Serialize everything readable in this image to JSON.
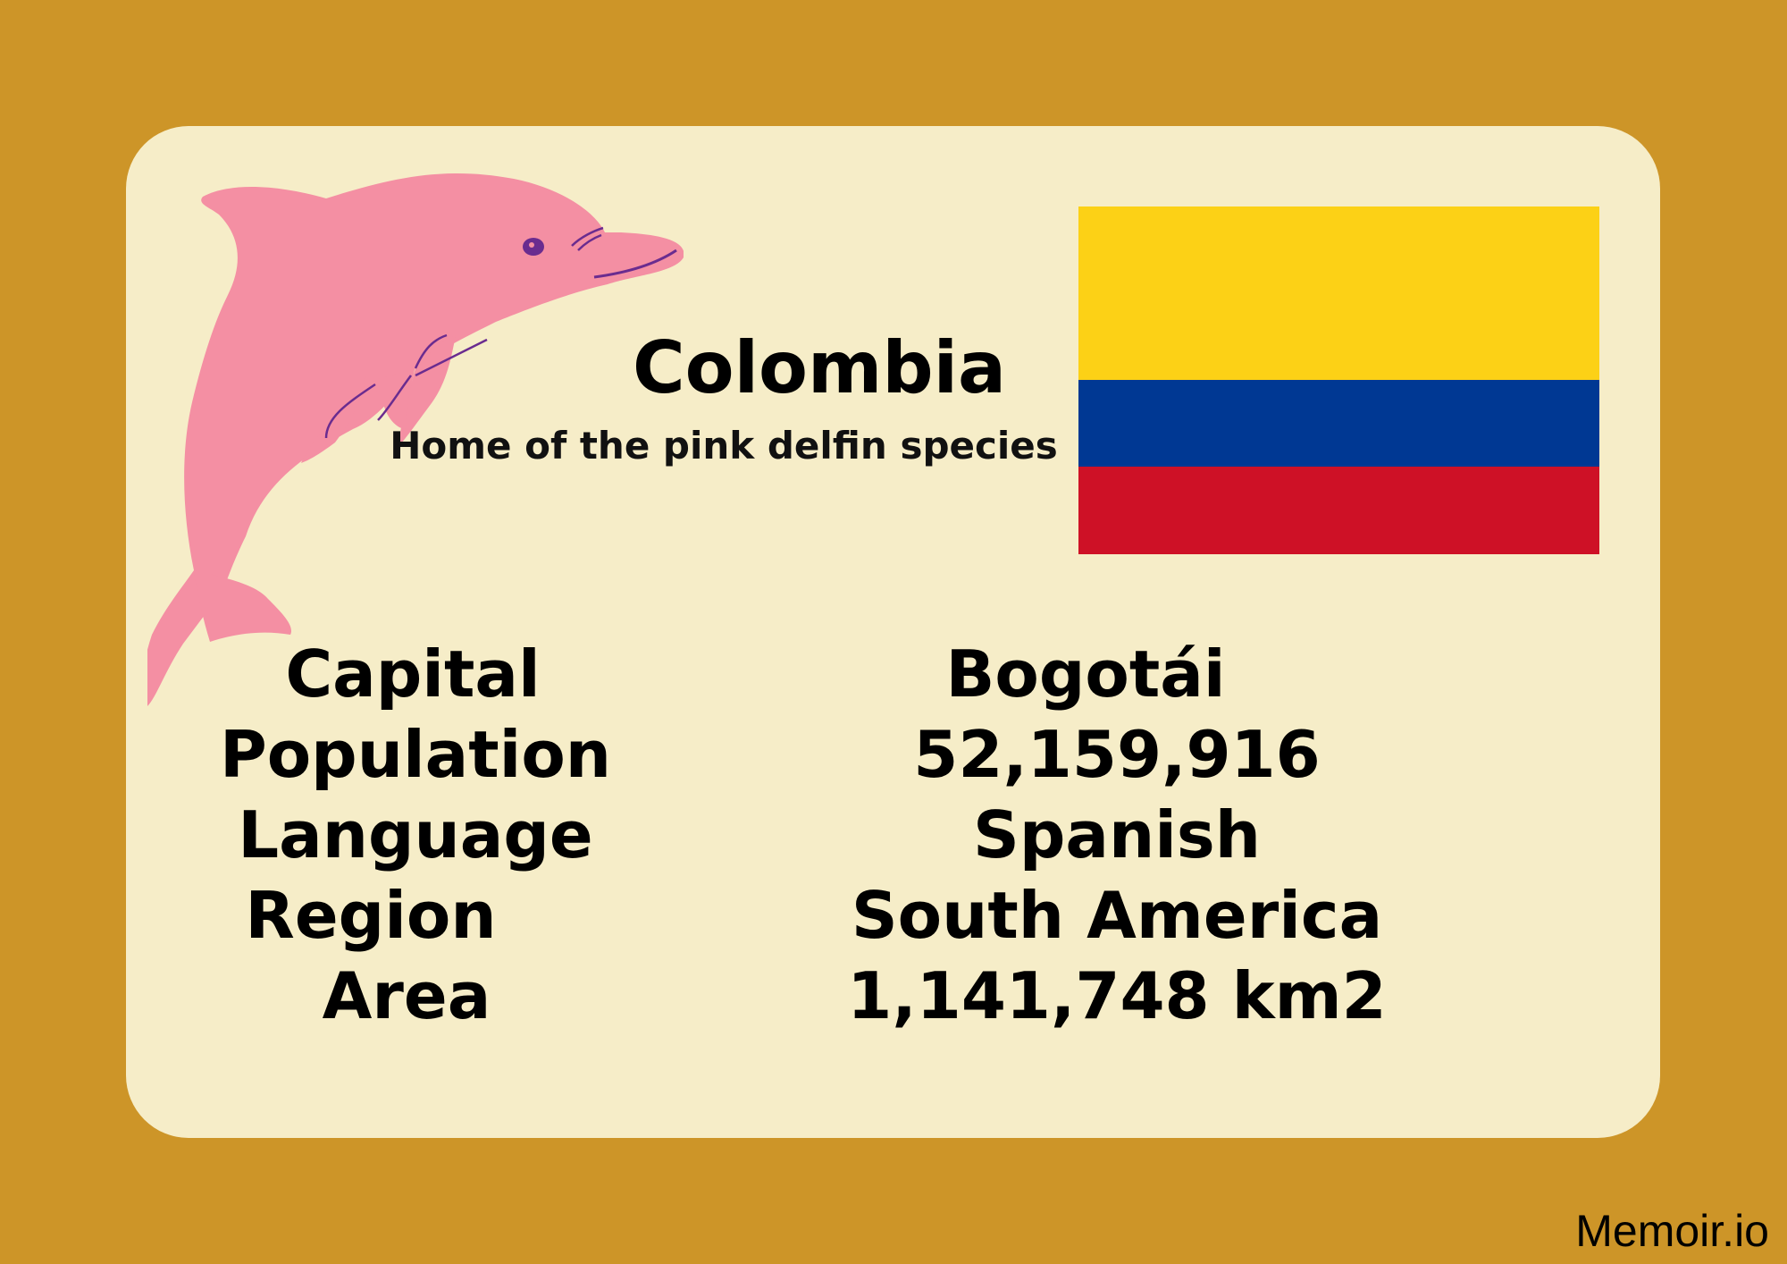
{
  "card": {
    "title": "Colombia",
    "subtitle": "Home of the pink delfin species"
  },
  "illustration": {
    "icon": "pink-dolphin-icon",
    "colors": {
      "body": "#F48FA3",
      "accent": "#6A2C8F"
    }
  },
  "flag": {
    "colors": [
      "#FCD116",
      "#003893",
      "#CE1126"
    ]
  },
  "facts": [
    {
      "label": "Capital",
      "value": "Bogotái"
    },
    {
      "label": "Population",
      "value": "52,159,916"
    },
    {
      "label": "Language",
      "value": "Spanish"
    },
    {
      "label": "Region",
      "value": "South America"
    },
    {
      "label": "Area",
      "value": "1,141,748 km2"
    }
  ],
  "footer": {
    "brand": "Memoir.io"
  },
  "colors": {
    "background": "#CD9528",
    "card": "#F6EDC8",
    "text": "#000000"
  }
}
